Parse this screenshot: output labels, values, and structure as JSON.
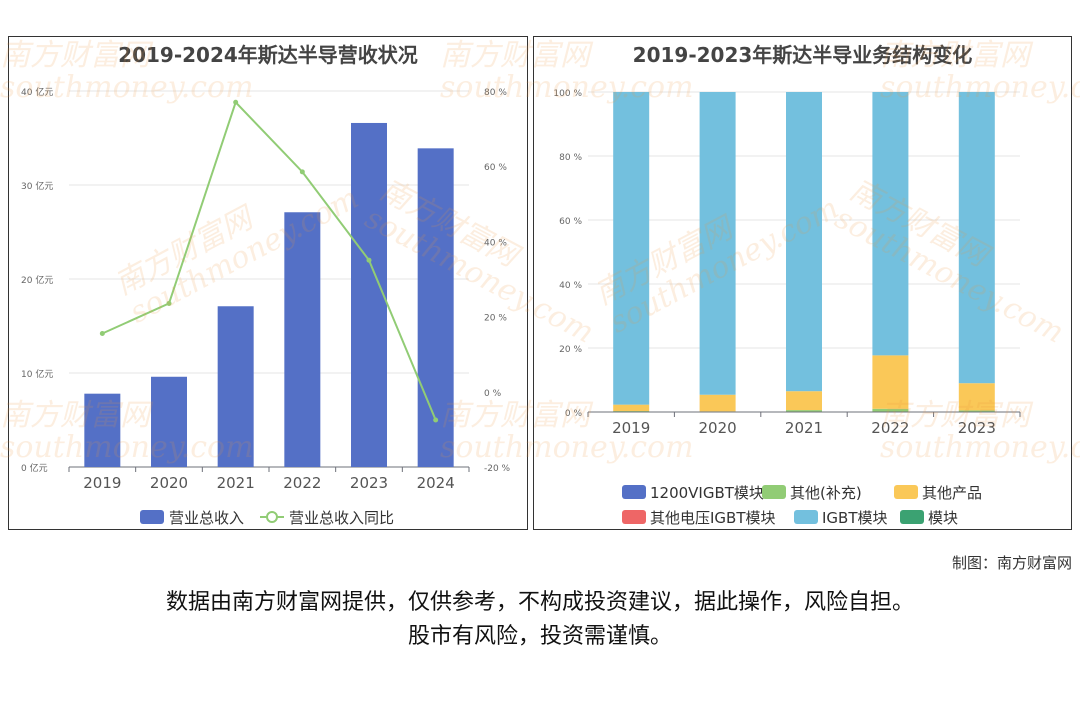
{
  "charts": {
    "left": {
      "title": "2019-2024年斯达半导营收状况"
    },
    "right": {
      "title": "2019-2023年斯达半导业务结构变化"
    }
  },
  "chart_data": [
    {
      "type": "bar",
      "title": "2019-2024年斯达半导营收状况",
      "categories": [
        "2019",
        "2020",
        "2021",
        "2022",
        "2023",
        "2024"
      ],
      "series": [
        {
          "name": "营业总收入",
          "type": "bar",
          "axis": "left",
          "values": [
            7.8,
            9.6,
            17.1,
            27.1,
            36.6,
            33.9
          ],
          "color": "#5470c6"
        },
        {
          "name": "营业总收入同比",
          "type": "line",
          "axis": "right",
          "values": [
            15.5,
            23.5,
            77.0,
            58.5,
            35.0,
            -7.5
          ],
          "color": "#91cc75"
        }
      ],
      "y_left": {
        "min": 0,
        "max": 40,
        "ticks": [
          0,
          10,
          20,
          30,
          40
        ],
        "tick_labels": [
          "0 亿元",
          "10 亿元",
          "20 亿元",
          "30 亿元",
          "40 亿元"
        ]
      },
      "y_right": {
        "min": -20,
        "max": 80,
        "ticks": [
          -20,
          0,
          20,
          40,
          60,
          80
        ],
        "tick_labels": [
          "-20 %",
          "0 %",
          "20 %",
          "40 %",
          "60 %",
          "80 %"
        ]
      },
      "grid": true,
      "legend": "bottom-center"
    },
    {
      "type": "bar",
      "stacked": true,
      "title": "2019-2023年斯达半导业务结构变化",
      "categories": [
        "2019",
        "2020",
        "2021",
        "2022",
        "2023"
      ],
      "series": [
        {
          "name": "1200VIGBT模块",
          "values": [
            0,
            0,
            0,
            0,
            0
          ],
          "color": "#5470c6"
        },
        {
          "name": "其他(补充)",
          "values": [
            0.3,
            0.2,
            0.6,
            1.0,
            0.5
          ],
          "color": "#91cc75"
        },
        {
          "name": "其他产品",
          "values": [
            2.0,
            5.2,
            5.9,
            16.7,
            8.5
          ],
          "color": "#fac858"
        },
        {
          "name": "其他电压IGBT模块",
          "values": [
            0,
            0,
            0,
            0,
            0
          ],
          "color": "#ee6666"
        },
        {
          "name": "IGBT模块",
          "values": [
            97.7,
            94.6,
            93.5,
            82.3,
            91.0
          ],
          "color": "#73c0de"
        },
        {
          "name": "模块",
          "values": [
            0,
            0,
            0,
            0,
            0
          ],
          "color": "#3ba272"
        }
      ],
      "y": {
        "min": 0,
        "max": 100,
        "ticks": [
          0,
          20,
          40,
          60,
          80,
          100
        ],
        "tick_labels": [
          "0 %",
          "20 %",
          "40 %",
          "60 %",
          "80 %",
          "100 %"
        ]
      },
      "grid": true,
      "legend": "bottom-center"
    }
  ],
  "watermark": {
    "cn": "南方财富网",
    "en": "southmoney.com"
  },
  "footer": {
    "credit": "制图：南方财富网",
    "disclaimer_line1": "数据由南方财富网提供，仅供参考，不构成投资建议，据此操作，风险自担。",
    "disclaimer_line2": "股市有风险，投资需谨慎。"
  }
}
